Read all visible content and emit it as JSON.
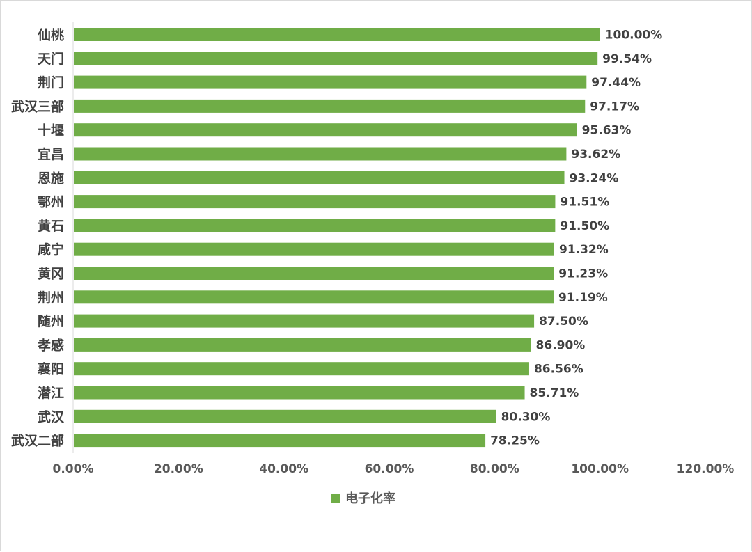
{
  "chart_data": {
    "type": "bar",
    "orientation": "horizontal",
    "categories": [
      "仙桃",
      "天门",
      "荆门",
      "武汉三部",
      "十堰",
      "宜昌",
      "恩施",
      "鄂州",
      "黄石",
      "咸宁",
      "黄冈",
      "荆州",
      "随州",
      "孝感",
      "襄阳",
      "潜江",
      "武汉",
      "武汉二部"
    ],
    "series": [
      {
        "name": "电子化率",
        "color": "#70ad47",
        "values": [
          100.0,
          99.54,
          97.44,
          97.17,
          95.63,
          93.62,
          93.24,
          91.51,
          91.5,
          91.32,
          91.23,
          91.19,
          87.5,
          86.9,
          86.56,
          85.71,
          80.3,
          78.25
        ],
        "labels": [
          "100.00%",
          "99.54%",
          "97.44%",
          "97.17%",
          "95.63%",
          "93.62%",
          "93.24%",
          "91.51%",
          "91.50%",
          "91.32%",
          "91.23%",
          "91.19%",
          "87.50%",
          "86.90%",
          "86.56%",
          "85.71%",
          "80.30%",
          "78.25%"
        ]
      }
    ],
    "xlim": [
      0,
      120
    ],
    "x_ticks": [
      0,
      20,
      40,
      60,
      80,
      100,
      120
    ],
    "x_tick_labels": [
      "0.00%",
      "20.00%",
      "40.00%",
      "60.00%",
      "80.00%",
      "100.00%",
      "120.00%"
    ],
    "grid": false,
    "legend": "bottom"
  }
}
